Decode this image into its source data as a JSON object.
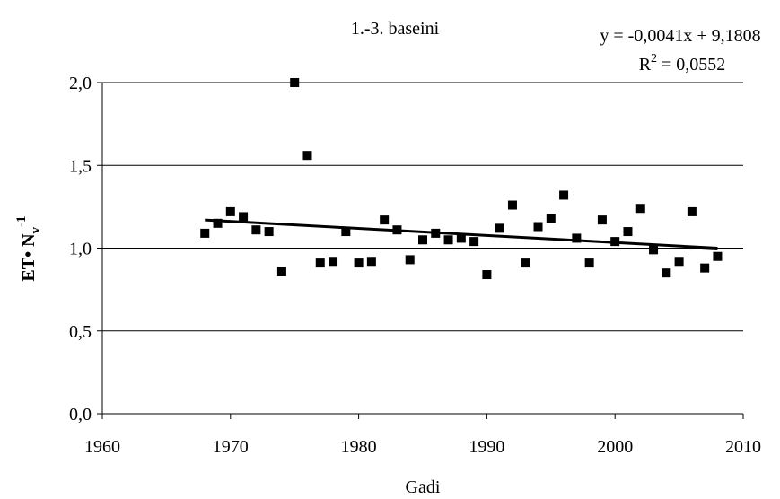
{
  "chart_data": {
    "type": "scatter",
    "title": "1.-3. baseini",
    "x_label": "Gadi",
    "y_label": {
      "main": "ET• N",
      "sub": "v",
      "sup": "-1"
    },
    "equation": "y = -0,0041x + 9,1808",
    "r_squared": {
      "main": "R",
      "sup": "2",
      "rest": " = 0,0552"
    },
    "x": [
      1968,
      1969,
      1970,
      1971,
      1972,
      1973,
      1974,
      1975,
      1976,
      1977,
      1978,
      1979,
      1980,
      1981,
      1982,
      1983,
      1984,
      1985,
      1986,
      1987,
      1988,
      1989,
      1990,
      1991,
      1992,
      1993,
      1994,
      1995,
      1996,
      1997,
      1998,
      1999,
      2000,
      2001,
      2002,
      2003,
      2004,
      2005,
      2006,
      2007,
      2008
    ],
    "series": [
      {
        "color": "#000000",
        "values": [
          1.09,
          1.15,
          1.22,
          1.19,
          1.11,
          1.1,
          0.86,
          2.0,
          1.56,
          0.91,
          0.92,
          1.1,
          0.91,
          0.92,
          1.17,
          1.11,
          0.93,
          1.05,
          1.09,
          1.05,
          1.06,
          1.04,
          0.84,
          1.12,
          1.26,
          0.91,
          1.13,
          1.18,
          1.32,
          1.06,
          0.91,
          1.17,
          1.04,
          1.1,
          1.24,
          0.99,
          0.85,
          0.92,
          1.22,
          0.88,
          0.95
        ]
      }
    ],
    "trendline": {
      "x": [
        1968,
        2008
      ],
      "values": [
        1.17,
        1.0
      ],
      "color": "#000000"
    },
    "xlim": [
      1960,
      2010
    ],
    "xticks": [
      1960,
      1970,
      1980,
      1990,
      2000,
      2010
    ],
    "ylim": [
      0,
      2
    ],
    "yticks": [
      {
        "value": 0,
        "label": "0,0"
      },
      {
        "value": 0.5,
        "label": "0,5"
      },
      {
        "value": 1,
        "label": "1,0"
      },
      {
        "value": 1.5,
        "label": "1,5"
      },
      {
        "value": 2,
        "label": "2,0"
      }
    ],
    "grid": true
  }
}
